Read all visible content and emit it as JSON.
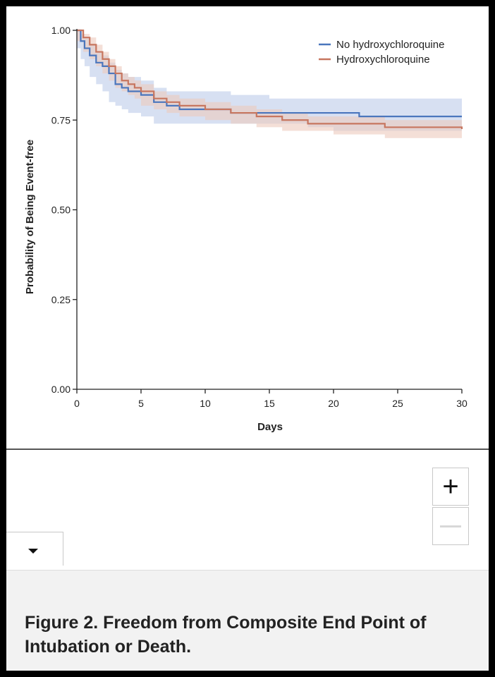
{
  "caption": {
    "title": "Figure 2. Freedom from Composite End Point of Intubation or Death."
  },
  "controls": {
    "zoom_in_label": "+",
    "zoom_out_label": "−"
  },
  "colors": {
    "no_hcq": "#4a76bd",
    "no_hcq_band": "#c9d6ee",
    "hcq": "#c7765f",
    "hcq_band": "#eccabd",
    "axis": "#222222"
  },
  "chart_data": {
    "type": "line",
    "title": "",
    "xlabel": "Days",
    "ylabel": "Probability of Being Event-free",
    "xlim": [
      0,
      30
    ],
    "ylim": [
      0,
      1
    ],
    "xticks": [
      0,
      5,
      10,
      15,
      20,
      25,
      30
    ],
    "yticks": [
      0,
      0.25,
      0.5,
      0.75,
      1.0
    ],
    "ytick_labels": [
      "0.00",
      "0.25",
      "0.50",
      "0.75",
      "1.00"
    ],
    "legend_position": "top-right",
    "grid": false,
    "series": [
      {
        "name": "No hydroxychloroquine",
        "color_key": "no_hcq",
        "x": [
          0,
          0.3,
          0.6,
          1.0,
          1.5,
          2.0,
          2.5,
          3.0,
          3.5,
          4.0,
          5.0,
          6.0,
          7.0,
          8.0,
          10.0,
          12.0,
          15.0,
          18.0,
          20.0,
          22.0,
          25.0,
          30.0
        ],
        "y": [
          1.0,
          0.97,
          0.95,
          0.93,
          0.91,
          0.9,
          0.88,
          0.85,
          0.84,
          0.83,
          0.82,
          0.8,
          0.79,
          0.78,
          0.78,
          0.77,
          0.77,
          0.77,
          0.77,
          0.76,
          0.76,
          0.76
        ],
        "ci_lower": [
          1.0,
          0.95,
          0.92,
          0.9,
          0.87,
          0.85,
          0.83,
          0.8,
          0.79,
          0.78,
          0.77,
          0.76,
          0.74,
          0.74,
          0.74,
          0.74,
          0.74,
          0.74,
          0.73,
          0.72,
          0.72,
          0.72
        ],
        "ci_upper": [
          1.0,
          0.99,
          0.98,
          0.96,
          0.94,
          0.93,
          0.91,
          0.89,
          0.88,
          0.87,
          0.86,
          0.84,
          0.83,
          0.83,
          0.83,
          0.82,
          0.81,
          0.81,
          0.81,
          0.81,
          0.81,
          0.81
        ]
      },
      {
        "name": "Hydroxychloroquine",
        "color_key": "hcq",
        "x": [
          0,
          0.5,
          1.0,
          1.5,
          2.0,
          2.5,
          3.0,
          3.5,
          4.0,
          4.5,
          5.0,
          6.0,
          7.0,
          8.0,
          10.0,
          12.0,
          14.0,
          16.0,
          18.0,
          20.0,
          24.0,
          26.0,
          30.0
        ],
        "y": [
          1.0,
          0.98,
          0.96,
          0.94,
          0.92,
          0.9,
          0.88,
          0.86,
          0.85,
          0.84,
          0.83,
          0.81,
          0.8,
          0.79,
          0.78,
          0.77,
          0.76,
          0.75,
          0.74,
          0.74,
          0.73,
          0.73,
          0.725
        ],
        "ci_lower": [
          1.0,
          0.97,
          0.94,
          0.92,
          0.9,
          0.88,
          0.86,
          0.84,
          0.83,
          0.82,
          0.81,
          0.79,
          0.78,
          0.77,
          0.76,
          0.75,
          0.74,
          0.73,
          0.72,
          0.72,
          0.71,
          0.7,
          0.7
        ],
        "ci_upper": [
          1.0,
          0.99,
          0.98,
          0.96,
          0.94,
          0.92,
          0.9,
          0.88,
          0.87,
          0.86,
          0.85,
          0.83,
          0.82,
          0.81,
          0.8,
          0.79,
          0.78,
          0.77,
          0.76,
          0.76,
          0.75,
          0.75,
          0.745
        ]
      }
    ]
  }
}
